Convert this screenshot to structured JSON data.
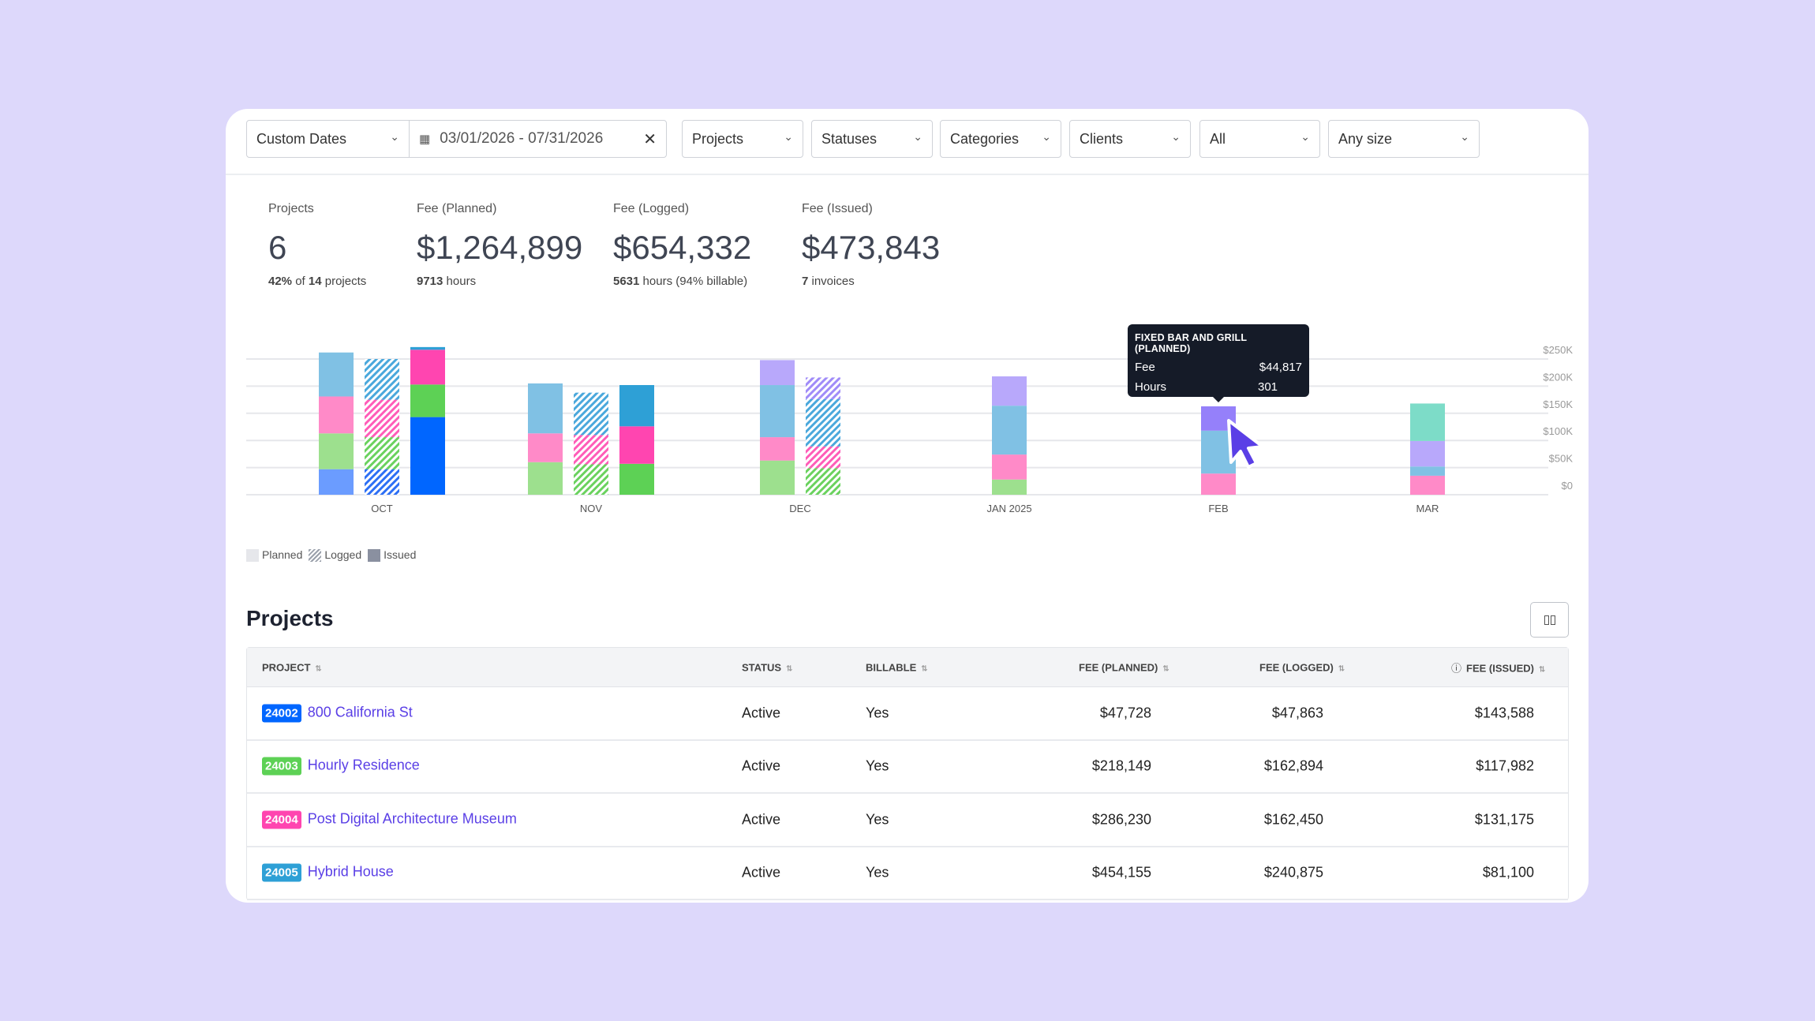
{
  "filters": {
    "date_mode": "Custom Dates",
    "date_range": "03/01/2026 - 07/31/2026",
    "projects": "Projects",
    "statuses": "Statuses",
    "categories": "Categories",
    "clients": "Clients",
    "all": "All",
    "size": "Any size"
  },
  "stats": [
    {
      "label": "Projects",
      "value": "6",
      "sub_bold": "42%",
      "sub": " of ",
      "sub_bold2": "14",
      "sub2": " projects"
    },
    {
      "label": "Fee (Planned)",
      "value": "$1,264,899",
      "sub_bold": "9713",
      "sub": " hours"
    },
    {
      "label": "Fee (Logged)",
      "value": "$654,332",
      "sub_bold": "5631",
      "sub": " hours (94% billable)"
    },
    {
      "label": "Fee (Issued)",
      "value": "$473,843",
      "sub_bold": "7",
      "sub": " invoices"
    }
  ],
  "legend": {
    "planned": "Planned",
    "logged": "Logged",
    "issued": "Issued"
  },
  "tooltip": {
    "title": "FIXED BAR AND GRILL (PLANNED)",
    "fee_label": "Fee",
    "fee": "$44,817",
    "hours_label": "Hours",
    "hours": "301"
  },
  "chart_data": {
    "type": "bar",
    "stacked": true,
    "ylim": [
      0,
      250000
    ],
    "yticks": [
      "$0",
      "$50K",
      "$100K",
      "$150K",
      "$200K",
      "$250K"
    ],
    "categories": [
      "OCT",
      "NOV",
      "DEC",
      "JAN 2025",
      "FEB",
      "MAR"
    ],
    "bars": [
      {
        "month": 0,
        "kind": "planned",
        "segments": [
          {
            "v": 47000,
            "c": "#6b9cff"
          },
          {
            "v": 66000,
            "c": "#9de08e"
          },
          {
            "v": 68000,
            "c": "#ff8ac8"
          },
          {
            "v": 81000,
            "c": "#80c1e4"
          }
        ]
      },
      {
        "month": 0,
        "kind": "logged",
        "segments": [
          {
            "v": 47000,
            "c": "#2d6ff5"
          },
          {
            "v": 59000,
            "c": "#6ad25e"
          },
          {
            "v": 69000,
            "c": "#ff5cb8"
          },
          {
            "v": 75000,
            "c": "#4aa8dc"
          }
        ]
      },
      {
        "month": 0,
        "kind": "issued",
        "segments": [
          {
            "v": 143000,
            "c": "#0066ff"
          },
          {
            "v": 60000,
            "c": "#5dd155"
          },
          {
            "v": 64000,
            "c": "#ff45b0"
          },
          {
            "v": 5000,
            "c": "#2ea0d6"
          }
        ]
      },
      {
        "month": 1,
        "kind": "planned",
        "segments": [
          {
            "v": 60000,
            "c": "#9de08e"
          },
          {
            "v": 53000,
            "c": "#ff8ac8"
          },
          {
            "v": 92000,
            "c": "#80c1e4"
          }
        ]
      },
      {
        "month": 1,
        "kind": "logged",
        "segments": [
          {
            "v": 56000,
            "c": "#6ad25e"
          },
          {
            "v": 54000,
            "c": "#ff5cb8"
          },
          {
            "v": 78000,
            "c": "#4aa8dc"
          }
        ]
      },
      {
        "month": 1,
        "kind": "issued",
        "segments": [
          {
            "v": 57000,
            "c": "#5dd155"
          },
          {
            "v": 69000,
            "c": "#ff45b0"
          },
          {
            "v": 76000,
            "c": "#2ea0d6"
          }
        ]
      },
      {
        "month": 2,
        "kind": "planned",
        "segments": [
          {
            "v": 63000,
            "c": "#9de08e"
          },
          {
            "v": 43000,
            "c": "#ff8ac8"
          },
          {
            "v": 96000,
            "c": "#80c1e4"
          },
          {
            "v": 46000,
            "c": "#b8a8fb"
          }
        ]
      },
      {
        "month": 2,
        "kind": "logged",
        "segments": [
          {
            "v": 49000,
            "c": "#6ad25e"
          },
          {
            "v": 40000,
            "c": "#ff5cb8"
          },
          {
            "v": 87000,
            "c": "#4aa8dc"
          },
          {
            "v": 40000,
            "c": "#a08cf8"
          }
        ]
      },
      {
        "month": 3,
        "kind": "planned",
        "segments": [
          {
            "v": 28000,
            "c": "#9de08e"
          },
          {
            "v": 46000,
            "c": "#ff8ac8"
          },
          {
            "v": 90000,
            "c": "#80c1e4"
          },
          {
            "v": 54000,
            "c": "#b8a8fb"
          }
        ]
      },
      {
        "month": 4,
        "kind": "planned",
        "segments": [
          {
            "v": 39000,
            "c": "#ff8ac8"
          },
          {
            "v": 79000,
            "c": "#80c1e4"
          },
          {
            "v": 44817,
            "c": "#9580fa"
          }
        ]
      },
      {
        "month": 5,
        "kind": "planned",
        "segments": [
          {
            "v": 35000,
            "c": "#ff8ac8"
          },
          {
            "v": 17000,
            "c": "#80c1e4"
          },
          {
            "v": 47000,
            "c": "#b8a8fb"
          },
          {
            "v": 69000,
            "c": "#7ddcc8"
          }
        ]
      }
    ]
  },
  "projects": {
    "title": "Projects",
    "columns": {
      "project": "PROJECT",
      "status": "STATUS",
      "billable": "BILLABLE",
      "fee_planned": "FEE (PLANNED)",
      "fee_logged": "FEE (LOGGED)",
      "fee_issued": "FEE (ISSUED)"
    },
    "rows": [
      {
        "id": "24002",
        "color": "#0066ff",
        "name": "800 California St",
        "status": "Active",
        "billable": "Yes",
        "planned": "$47,728",
        "logged": "$47,863",
        "issued": "$143,588"
      },
      {
        "id": "24003",
        "color": "#5dd155",
        "name": "Hourly Residence",
        "status": "Active",
        "billable": "Yes",
        "planned": "$218,149",
        "logged": "$162,894",
        "issued": "$117,982"
      },
      {
        "id": "24004",
        "color": "#ff45b0",
        "name": "Post Digital Architecture Museum",
        "status": "Active",
        "billable": "Yes",
        "planned": "$286,230",
        "logged": "$162,450",
        "issued": "$131,175"
      },
      {
        "id": "24005",
        "color": "#2ea0d6",
        "name": "Hybrid House",
        "status": "Active",
        "billable": "Yes",
        "planned": "$454,155",
        "logged": "$240,875",
        "issued": "$81,100"
      }
    ]
  }
}
